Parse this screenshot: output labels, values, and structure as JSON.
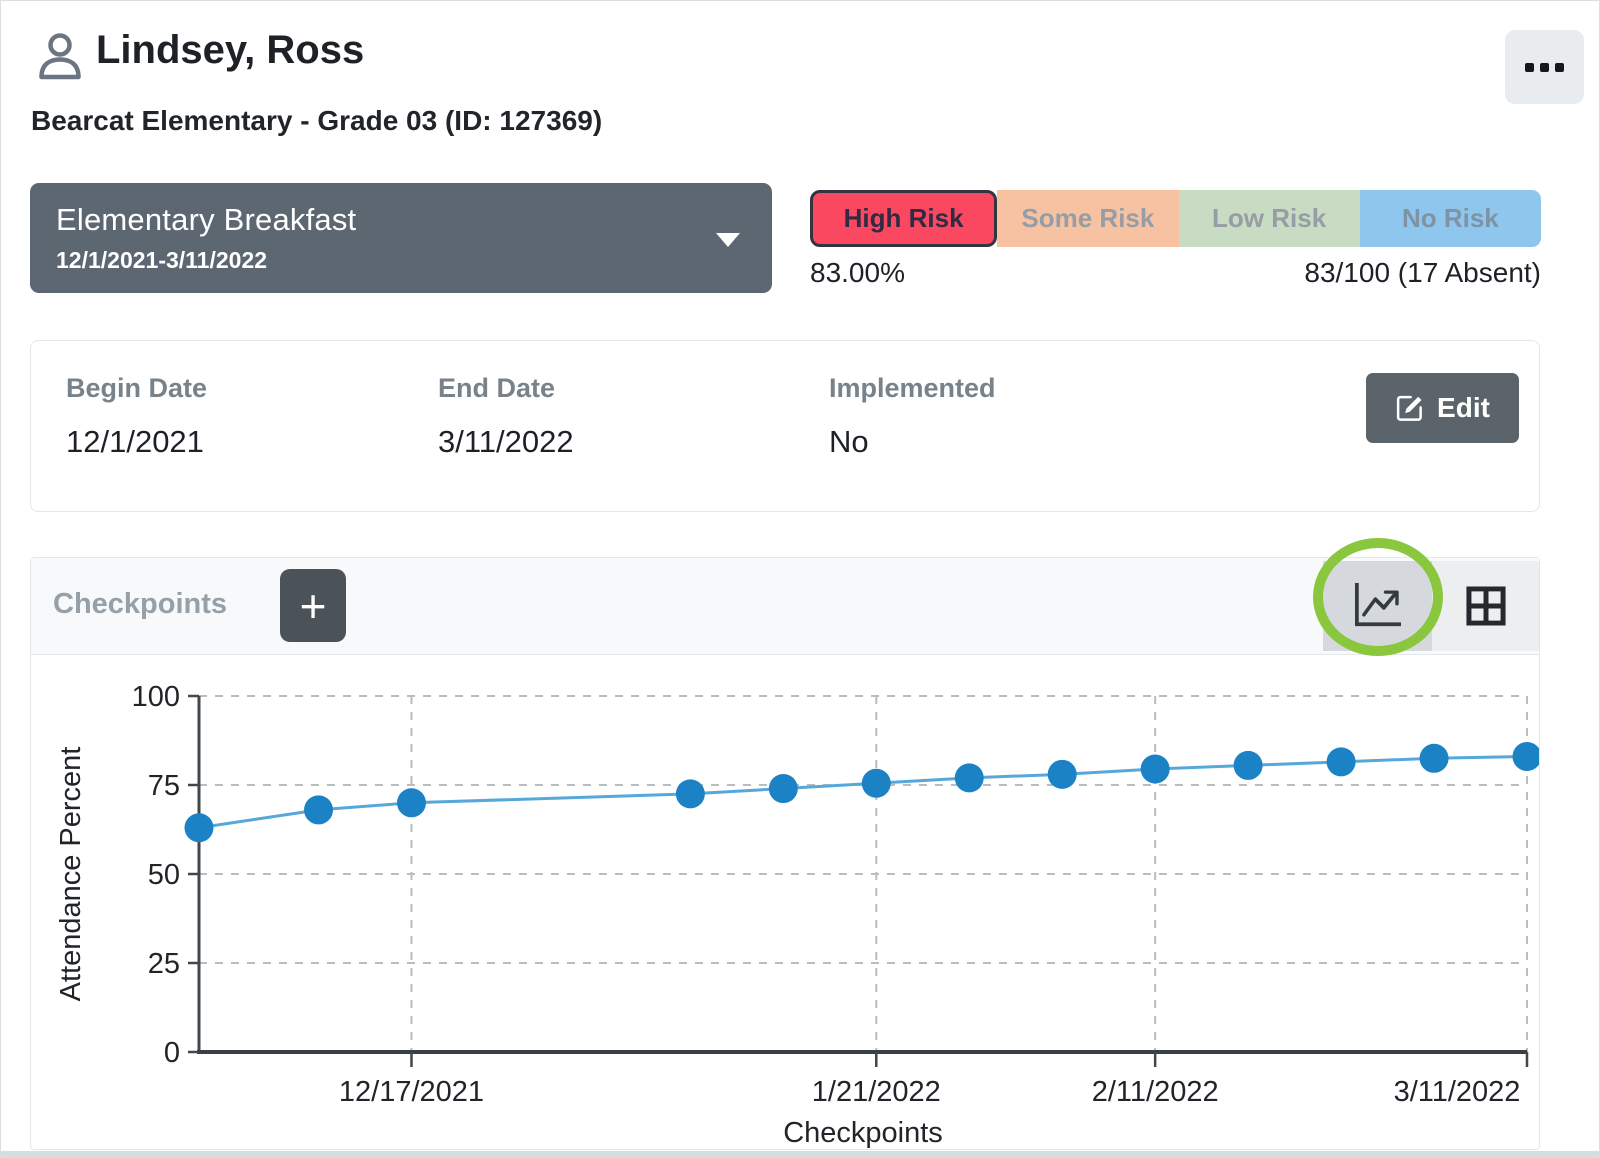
{
  "header": {
    "student_name": "Lindsey, Ross",
    "student_details": "Bearcat Elementary - Grade 03 (ID: 127369)",
    "icons": {
      "avatar": "person-icon",
      "menu": "ellipsis-icon"
    }
  },
  "intervention_dropdown": {
    "name": "Elementary Breakfast",
    "date_range": "12/1/2021-3/11/2022",
    "icon": "caret-down-icon"
  },
  "risk_bar": {
    "selected": "High Risk",
    "levels": [
      {
        "label": "High Risk",
        "color": "#f9485f",
        "selected": true
      },
      {
        "label": "Some Risk",
        "color": "#f6c2a2",
        "selected": false
      },
      {
        "label": "Low Risk",
        "color": "#c8dbc3",
        "selected": false
      },
      {
        "label": "No Risk",
        "color": "#8ec6ed",
        "selected": false
      }
    ],
    "percent": "83.00%",
    "ratio": "83/100 (17 Absent)"
  },
  "details_card": {
    "fields": [
      {
        "label": "Begin Date",
        "value": "12/1/2021"
      },
      {
        "label": "End Date",
        "value": "3/11/2022"
      },
      {
        "label": "Implemented",
        "value": "No"
      }
    ],
    "edit_button_label": "Edit",
    "edit_icon": "pencil-square-icon"
  },
  "checkpoints_section": {
    "title": "Checkpoints",
    "add_button_label": "+",
    "view_toggle": {
      "active": "chart",
      "chart_icon": "line-chart-icon",
      "table_icon": "table-grid-icon"
    },
    "annotation_color": "#8bc63f"
  },
  "chart_data": {
    "type": "line",
    "title": "",
    "xlabel": "Checkpoints",
    "ylabel": "Attendance Percent",
    "ylim": [
      0,
      100
    ],
    "yticks": [
      0,
      25,
      50,
      75,
      100
    ],
    "x_domain_days": [
      0,
      100
    ],
    "x_ticks": [
      {
        "day": 16,
        "label": "12/17/2021"
      },
      {
        "day": 51,
        "label": "1/21/2022"
      },
      {
        "day": 72,
        "label": "2/11/2022"
      },
      {
        "day": 100,
        "label": "3/11/2022"
      }
    ],
    "grid": "dashed",
    "legend": "none",
    "series": [
      {
        "name": "Attendance Percent",
        "line_color": "#57a8da",
        "point_color": "#1b82c5",
        "points": [
          {
            "day": 0,
            "date": "12/1/2021",
            "value": 63
          },
          {
            "day": 9,
            "date": "12/10/2021",
            "value": 68
          },
          {
            "day": 16,
            "date": "12/17/2021",
            "value": 70
          },
          {
            "day": 37,
            "date": "1/7/2022",
            "value": 72.5
          },
          {
            "day": 44,
            "date": "1/14/2022",
            "value": 74
          },
          {
            "day": 51,
            "date": "1/21/2022",
            "value": 75.5
          },
          {
            "day": 58,
            "date": "1/28/2022",
            "value": 77
          },
          {
            "day": 65,
            "date": "2/4/2022",
            "value": 78
          },
          {
            "day": 72,
            "date": "2/11/2022",
            "value": 79.5
          },
          {
            "day": 79,
            "date": "2/18/2022",
            "value": 80.5
          },
          {
            "day": 86,
            "date": "2/25/2022",
            "value": 81.5
          },
          {
            "day": 93,
            "date": "3/4/2022",
            "value": 82.5
          },
          {
            "day": 100,
            "date": "3/11/2022",
            "value": 83
          }
        ]
      }
    ]
  }
}
